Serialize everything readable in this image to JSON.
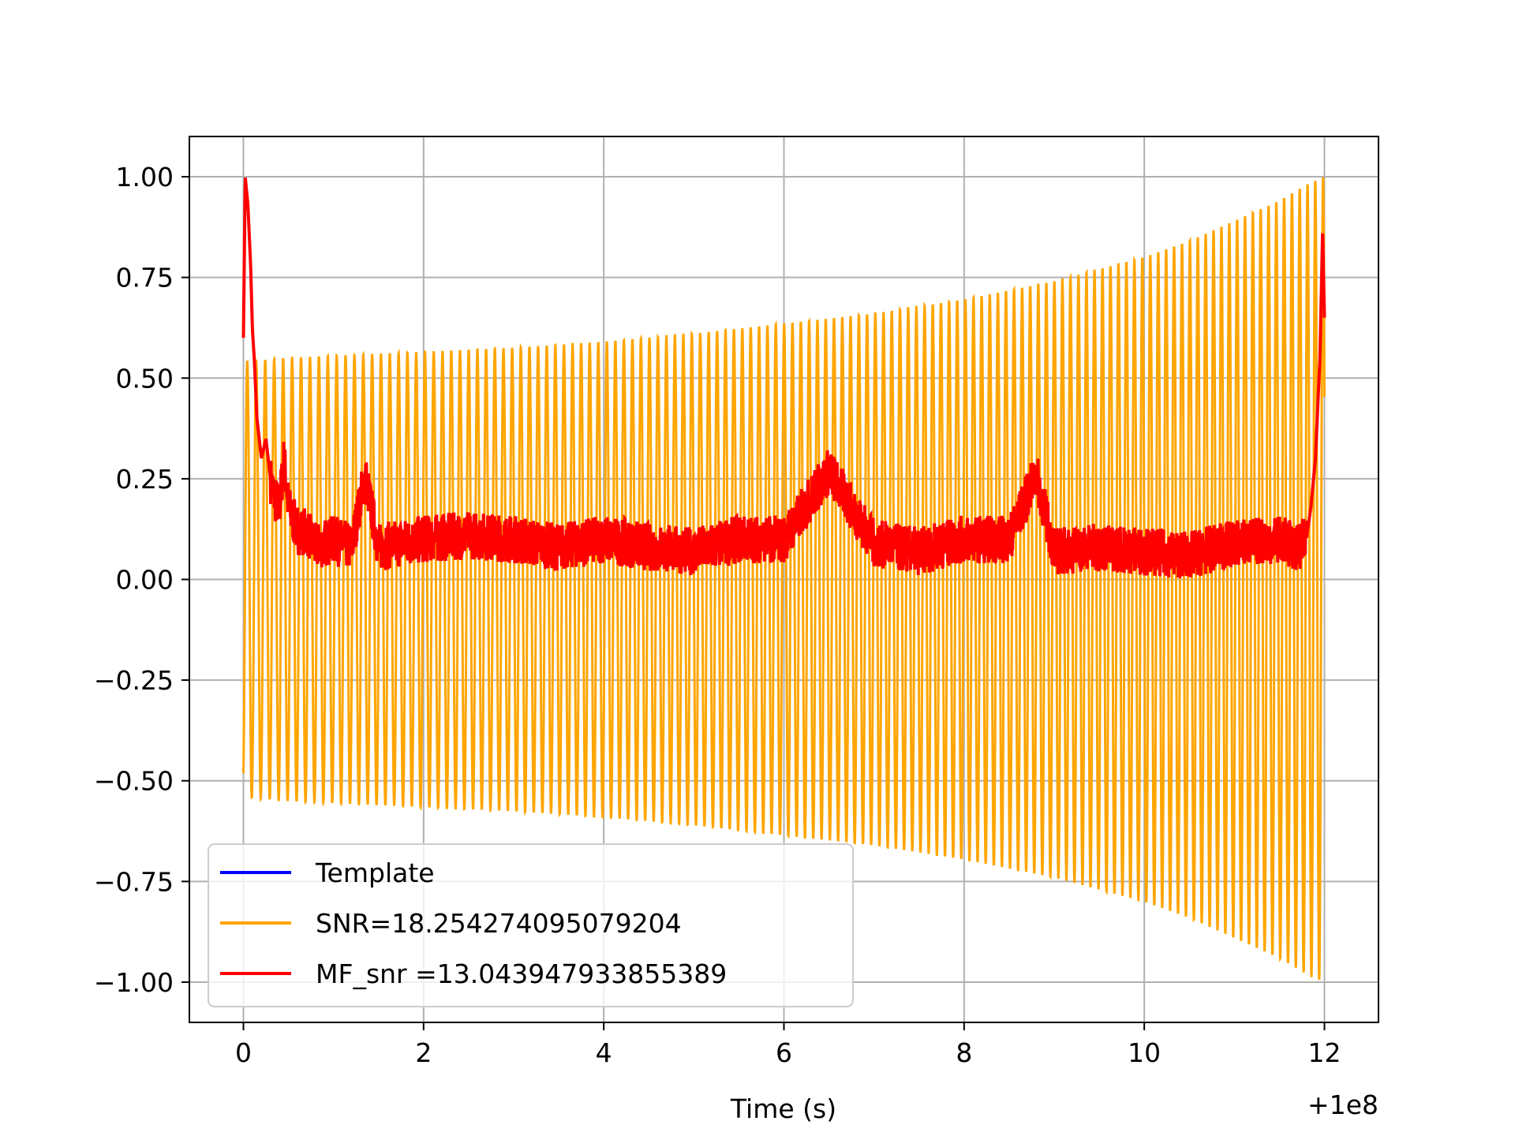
{
  "chart_data": {
    "type": "line",
    "title": "",
    "xlabel": "Time (s)",
    "ylabel": "",
    "x_offset_label": "+1e8",
    "xlim": [
      -0.6,
      12.6
    ],
    "ylim": [
      -1.1,
      1.1
    ],
    "grid": true,
    "x_ticks": [
      0,
      2,
      4,
      6,
      8,
      10,
      12
    ],
    "y_ticks": [
      1.0,
      0.75,
      0.5,
      0.25,
      0.0,
      -0.25,
      -0.5,
      -0.75,
      -1.0
    ],
    "x_tick_labels": [
      "0",
      "2",
      "4",
      "6",
      "8",
      "10",
      "12"
    ],
    "y_tick_labels": [
      "1.00",
      "0.75",
      "0.50",
      "0.25",
      "0.00",
      "−0.25",
      "−0.50",
      "−0.75",
      "−1.00"
    ],
    "legend_position": "lower-left",
    "series": [
      {
        "name": "Template",
        "color": "#0000ff",
        "description_values": {
          "x_range": [
            0,
            12
          ]
        }
      },
      {
        "name": "SNR=18.254274095079204",
        "color": "#ffa500",
        "envelope": {
          "x": [
            0.0,
            0.5,
            1,
            2,
            3,
            4,
            5,
            6,
            7,
            8,
            9,
            10,
            10.5,
            11,
            11.5,
            11.8,
            12.0
          ],
          "amp": [
            0.54,
            0.55,
            0.555,
            0.565,
            0.575,
            0.59,
            0.61,
            0.635,
            0.66,
            0.695,
            0.74,
            0.8,
            0.84,
            0.89,
            0.94,
            0.98,
            1.0
          ]
        },
        "cycles": 120
      },
      {
        "name": "MF_snr =13.043947933855389",
        "color": "#ff0000",
        "points": {
          "x": [
            0.0,
            0.02,
            0.05,
            0.08,
            0.1,
            0.12,
            0.15,
            0.2,
            0.25,
            0.3,
            0.35,
            0.4,
            0.45,
            0.5,
            0.6,
            0.7,
            0.8,
            1.0,
            1.2,
            1.35,
            1.5,
            2.0,
            2.5,
            3.0,
            3.5,
            4.0,
            4.5,
            5.0,
            5.5,
            6.0,
            6.5,
            7.0,
            7.5,
            8.0,
            8.5,
            8.8,
            9.0,
            9.5,
            10.0,
            10.5,
            11.0,
            11.5,
            11.7,
            11.8,
            11.85,
            11.9,
            11.95,
            11.98,
            12.0
          ],
          "y": [
            0.6,
            1.0,
            0.93,
            0.78,
            0.62,
            0.55,
            0.4,
            0.3,
            0.35,
            0.25,
            0.2,
            0.18,
            0.3,
            0.18,
            0.12,
            0.12,
            0.08,
            0.1,
            0.08,
            0.26,
            0.08,
            0.1,
            0.11,
            0.1,
            0.08,
            0.1,
            0.08,
            0.07,
            0.1,
            0.1,
            0.27,
            0.09,
            0.07,
            0.1,
            0.1,
            0.26,
            0.07,
            0.08,
            0.07,
            0.06,
            0.09,
            0.1,
            0.08,
            0.1,
            0.18,
            0.3,
            0.55,
            0.87,
            0.65
          ]
        }
      }
    ]
  }
}
